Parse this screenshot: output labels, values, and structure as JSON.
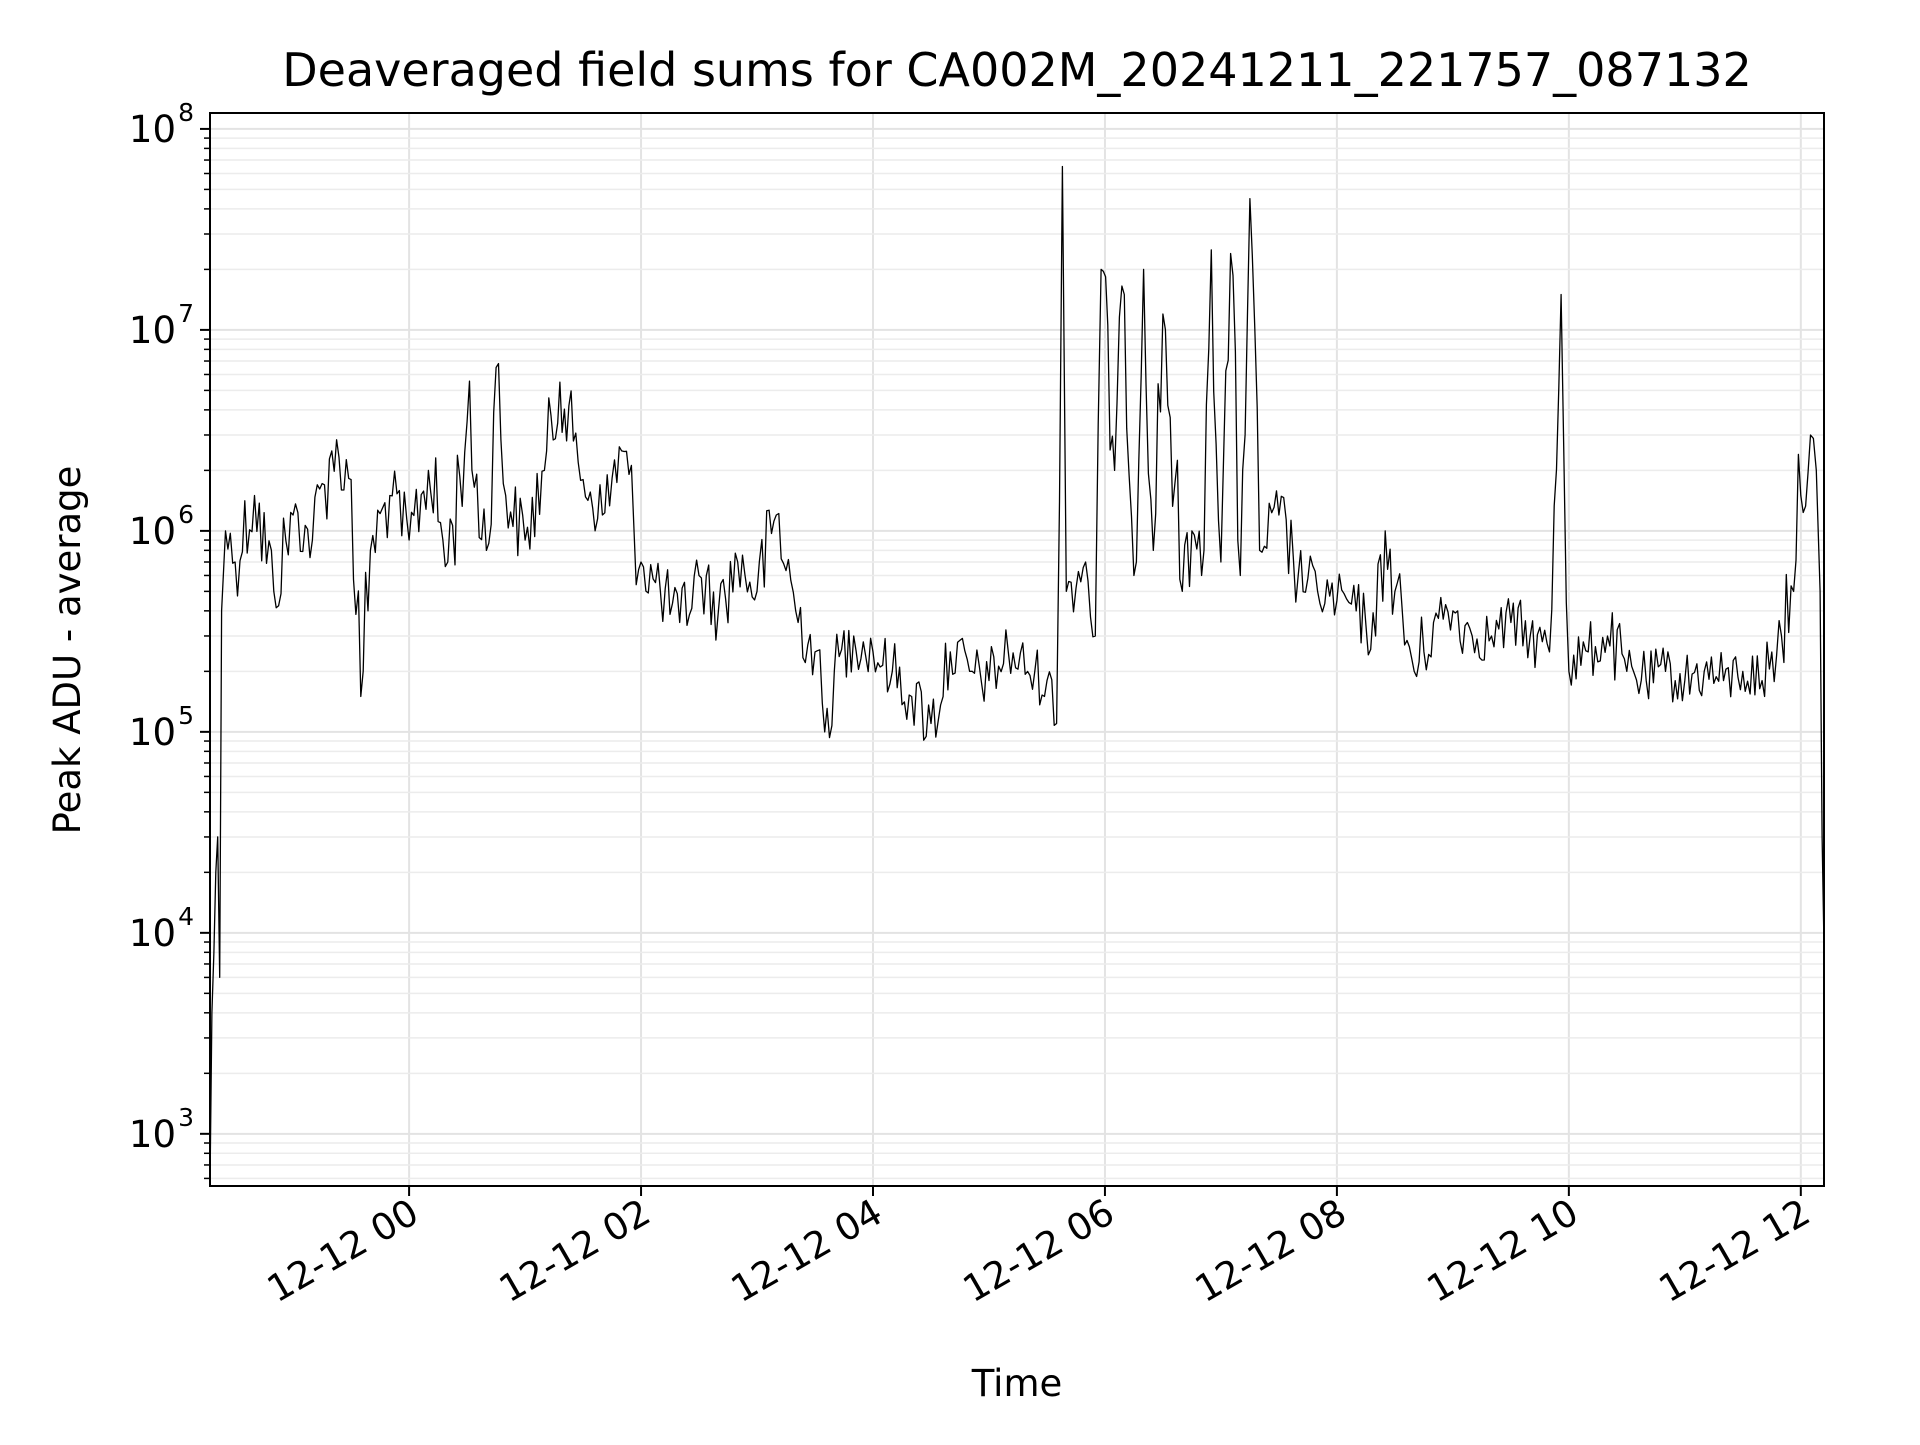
{
  "chart_data": {
    "type": "line",
    "title": "Deaveraged field sums for CA002M_20241211_221757_087132",
    "xlabel": "Time",
    "ylabel": "Peak ADU - average",
    "yscale": "log",
    "xlim": [
      "2024-12-11 22:17",
      "2024-12-12 12:12"
    ],
    "ylim": [
      550,
      120000000
    ],
    "grid": true,
    "line_color": "#000000",
    "grid_color": "#e3e3e3",
    "x_ticks": [
      {
        "value": "2024-12-12 00:00",
        "label": "12-12 00"
      },
      {
        "value": "2024-12-12 02:00",
        "label": "12-12 02"
      },
      {
        "value": "2024-12-12 04:00",
        "label": "12-12 04"
      },
      {
        "value": "2024-12-12 06:00",
        "label": "12-12 06"
      },
      {
        "value": "2024-12-12 08:00",
        "label": "12-12 08"
      },
      {
        "value": "2024-12-12 10:00",
        "label": "12-12 10"
      },
      {
        "value": "2024-12-12 12:00",
        "label": "12-12 12"
      }
    ],
    "y_ticks": [
      {
        "value": 1000,
        "base": "10",
        "exp": "3"
      },
      {
        "value": 10000,
        "base": "10",
        "exp": "4"
      },
      {
        "value": 100000,
        "base": "10",
        "exp": "5"
      },
      {
        "value": 1000000,
        "base": "10",
        "exp": "6"
      },
      {
        "value": 10000000,
        "base": "10",
        "exp": "7"
      },
      {
        "value": 100000000,
        "base": "10",
        "exp": "8"
      }
    ],
    "series": [
      {
        "x": [
          "2024-12-11 22:17",
          "2024-12-11 22:18",
          "2024-12-11 22:19",
          "2024-12-11 22:20",
          "2024-12-11 22:21",
          "2024-12-11 22:22",
          "2024-12-11 22:23",
          "2024-12-11 22:25",
          "2024-12-11 22:30",
          "2024-12-11 22:40",
          "2024-12-11 22:50",
          "2024-12-11 23:00",
          "2024-12-11 23:10",
          "2024-12-11 23:20",
          "2024-12-11 23:30",
          "2024-12-11 23:35",
          "2024-12-11 23:40",
          "2024-12-11 23:50",
          "2024-12-12 00:00",
          "2024-12-12 00:10",
          "2024-12-12 00:20",
          "2024-12-12 00:30",
          "2024-12-12 00:40",
          "2024-12-12 00:45",
          "2024-12-12 00:50",
          "2024-12-12 01:00",
          "2024-12-12 01:10",
          "2024-12-12 01:18",
          "2024-12-12 01:25",
          "2024-12-12 01:30",
          "2024-12-12 01:40",
          "2024-12-12 01:50",
          "2024-12-12 02:00",
          "2024-12-12 02:10",
          "2024-12-12 02:20",
          "2024-12-12 02:30",
          "2024-12-12 02:40",
          "2024-12-12 02:50",
          "2024-12-12 03:00",
          "2024-12-12 03:10",
          "2024-12-12 03:20",
          "2024-12-12 03:30",
          "2024-12-12 03:35",
          "2024-12-12 03:40",
          "2024-12-12 03:50",
          "2024-12-12 04:00",
          "2024-12-12 04:10",
          "2024-12-12 04:20",
          "2024-12-12 04:30",
          "2024-12-12 04:40",
          "2024-12-12 04:50",
          "2024-12-12 05:00",
          "2024-12-12 05:10",
          "2024-12-12 05:20",
          "2024-12-12 05:30",
          "2024-12-12 05:35",
          "2024-12-12 05:38",
          "2024-12-12 05:40",
          "2024-12-12 05:50",
          "2024-12-12 05:55",
          "2024-12-12 05:58",
          "2024-12-12 06:05",
          "2024-12-12 06:10",
          "2024-12-12 06:15",
          "2024-12-12 06:20",
          "2024-12-12 06:25",
          "2024-12-12 06:30",
          "2024-12-12 06:40",
          "2024-12-12 06:45",
          "2024-12-12 06:50",
          "2024-12-12 06:55",
          "2024-12-12 07:00",
          "2024-12-12 07:05",
          "2024-12-12 07:10",
          "2024-12-12 07:15",
          "2024-12-12 07:20",
          "2024-12-12 07:30",
          "2024-12-12 07:40",
          "2024-12-12 07:50",
          "2024-12-12 08:00",
          "2024-12-12 08:10",
          "2024-12-12 08:20",
          "2024-12-12 08:25",
          "2024-12-12 08:30",
          "2024-12-12 08:40",
          "2024-12-12 08:50",
          "2024-12-12 09:00",
          "2024-12-12 09:10",
          "2024-12-12 09:20",
          "2024-12-12 09:30",
          "2024-12-12 09:40",
          "2024-12-12 09:50",
          "2024-12-12 09:56",
          "2024-12-12 10:00",
          "2024-12-12 10:10",
          "2024-12-12 10:20",
          "2024-12-12 10:30",
          "2024-12-12 10:40",
          "2024-12-12 10:50",
          "2024-12-12 11:00",
          "2024-12-12 11:10",
          "2024-12-12 11:20",
          "2024-12-12 11:30",
          "2024-12-12 11:40",
          "2024-12-12 11:50",
          "2024-12-12 12:00",
          "2024-12-12 12:05",
          "2024-12-12 12:08",
          "2024-12-12 12:10",
          "2024-12-12 12:11",
          "2024-12-12 12:12"
        ],
        "y": [
          550,
          4000,
          8000,
          20000,
          30000,
          6000,
          400000,
          1000000,
          700000,
          1500000,
          500000,
          1200000,
          900000,
          2500000,
          1800000,
          150000,
          800000,
          1500000,
          900000,
          2000000,
          700000,
          3500000,
          800000,
          6500000,
          1500000,
          900000,
          2000000,
          5500000,
          2800000,
          1800000,
          1200000,
          2500000,
          700000,
          500000,
          350000,
          600000,
          400000,
          700000,
          500000,
          1200000,
          400000,
          250000,
          100000,
          200000,
          300000,
          250000,
          200000,
          150000,
          110000,
          250000,
          200000,
          180000,
          250000,
          200000,
          180000,
          110000,
          65000000,
          500000,
          700000,
          300000,
          20000000,
          2000000,
          15000000,
          600000,
          20000000,
          800000,
          12000000,
          500000,
          1000000,
          600000,
          25000000,
          700000,
          24000000,
          600000,
          45000000,
          800000,
          1200000,
          600000,
          500000,
          450000,
          400000,
          300000,
          1000000,
          500000,
          200000,
          350000,
          400000,
          300000,
          300000,
          350000,
          300000,
          250000,
          15000000,
          200000,
          250000,
          300000,
          200000,
          180000,
          200000,
          180000,
          200000,
          180000,
          200000,
          180000,
          300000,
          1500000,
          3000000,
          2000000,
          500000,
          30000,
          8500
        ]
      }
    ]
  }
}
